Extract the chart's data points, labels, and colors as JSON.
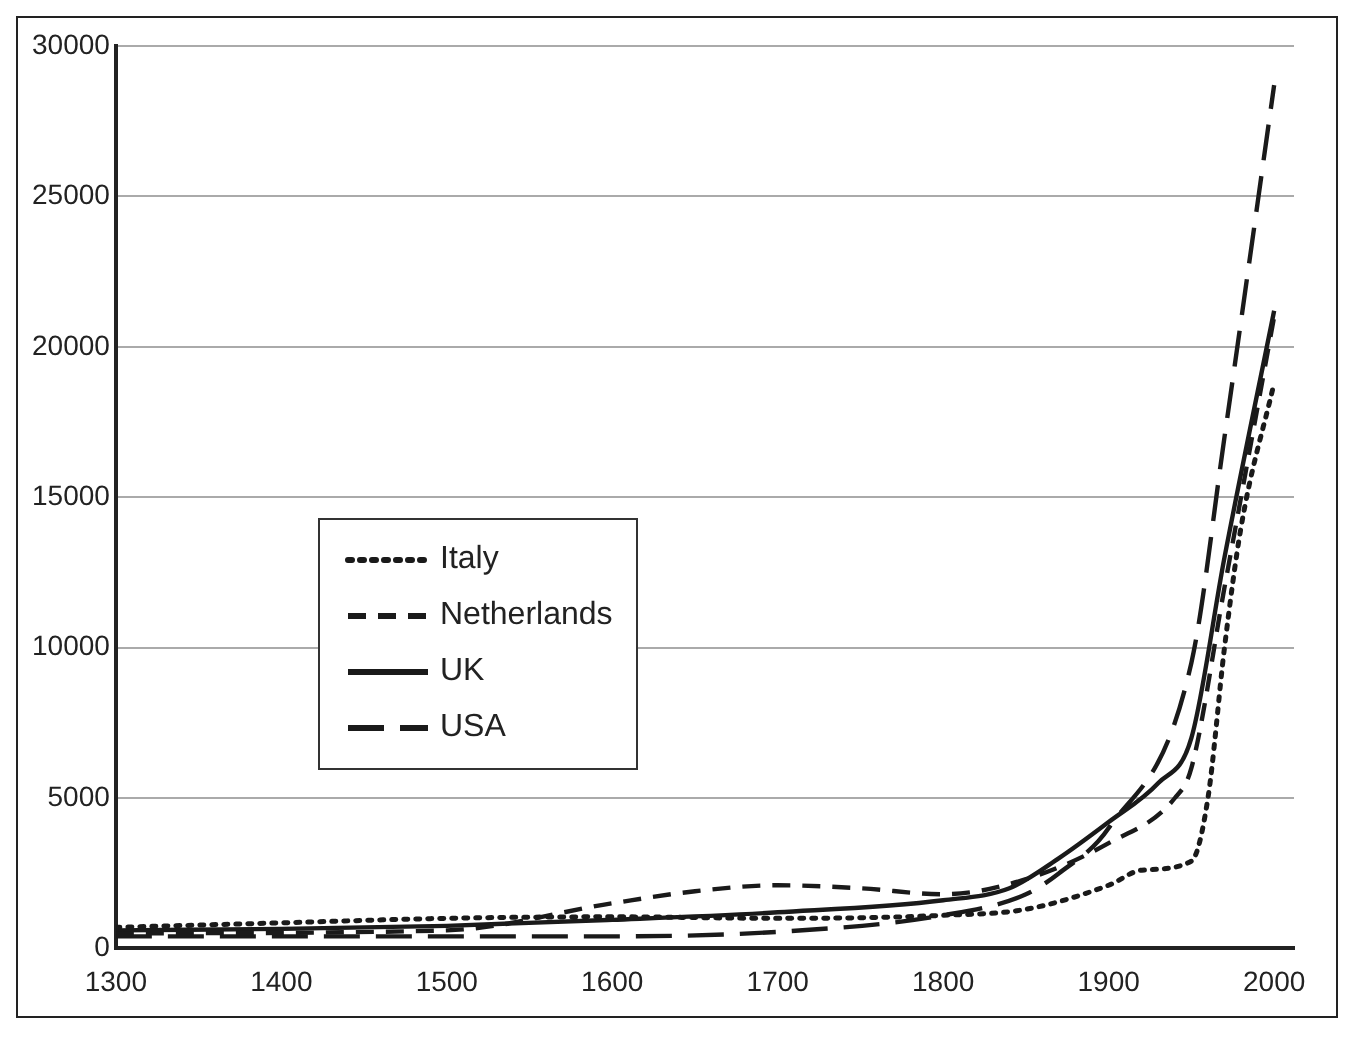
{
  "chart_data": {
    "type": "line",
    "xlim": [
      1300,
      2012
    ],
    "xticks": [
      1300,
      1400,
      1500,
      1600,
      1700,
      1800,
      1900,
      2000
    ],
    "ylim": [
      0,
      30000
    ],
    "yticks": [
      0,
      5000,
      10000,
      15000,
      20000,
      25000,
      30000
    ],
    "grid": "y",
    "legend": "left",
    "marker": "none",
    "series": [
      {
        "name": "Italy",
        "color": "#1a1a1a",
        "line_style": "dotted",
        "x": [
          1300,
          1400,
          1500,
          1600,
          1700,
          1800,
          1850,
          1900,
          1920,
          1950,
          1960,
          1970,
          1980,
          2000
        ],
        "values": [
          700,
          850,
          1000,
          1050,
          1000,
          1100,
          1300,
          2100,
          2600,
          2900,
          5000,
          10000,
          14000,
          18800
        ]
      },
      {
        "name": "Netherlands",
        "color": "#1a1a1a",
        "line_style": "dashed",
        "x": [
          1300,
          1500,
          1600,
          1650,
          1700,
          1750,
          1800,
          1850,
          1900,
          1940,
          1950,
          1970,
          2000
        ],
        "values": [
          500,
          600,
          1500,
          1900,
          2100,
          2000,
          1800,
          2300,
          3500,
          5000,
          6000,
          12000,
          21000
        ]
      },
      {
        "name": "UK",
        "color": "#1a1a1a",
        "line_style": "solid",
        "x": [
          1300,
          1400,
          1500,
          1600,
          1700,
          1800,
          1840,
          1870,
          1900,
          1930,
          1950,
          1970,
          2000
        ],
        "values": [
          600,
          650,
          750,
          950,
          1200,
          1600,
          2000,
          3000,
          4200,
          5500,
          7000,
          13000,
          21200
        ]
      },
      {
        "name": "USA",
        "color": "#1a1a1a",
        "line_style": "longdash",
        "x": [
          1300,
          1600,
          1700,
          1800,
          1850,
          1870,
          1900,
          1950,
          1970,
          2000
        ],
        "values": [
          400,
          400,
          550,
          1100,
          1800,
          2500,
          4000,
          9500,
          17000,
          28700
        ]
      }
    ]
  }
}
